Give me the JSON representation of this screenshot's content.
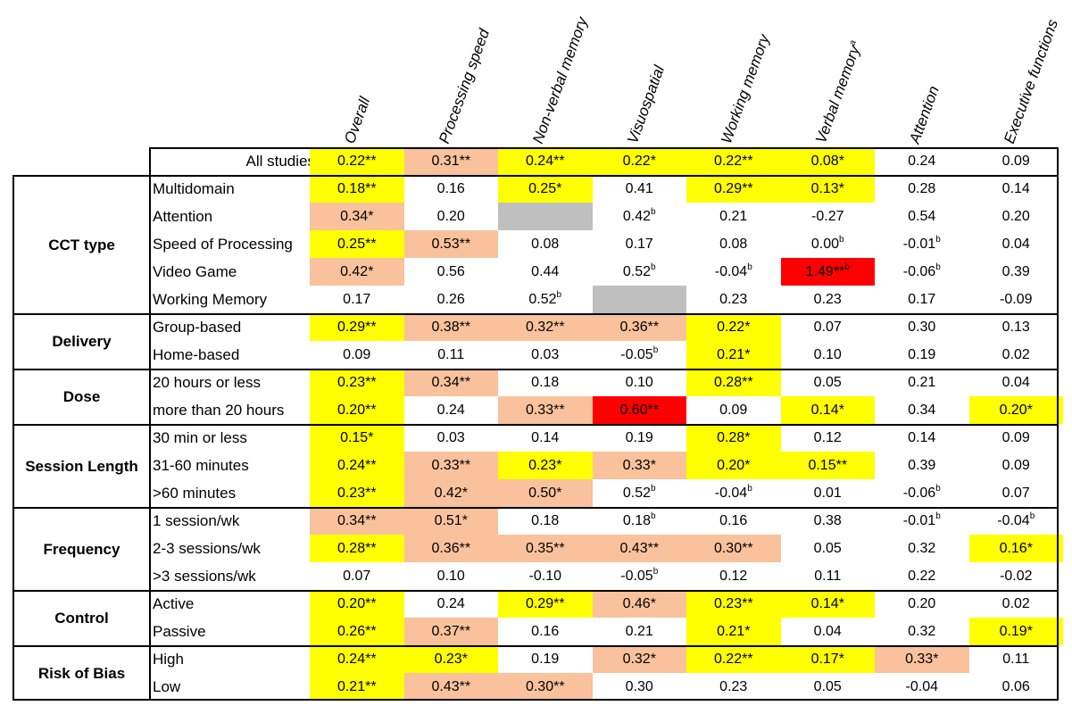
{
  "columns": [
    {
      "label": "Overall",
      "sup": ""
    },
    {
      "label": "Processing speed",
      "sup": ""
    },
    {
      "label": "Non-verbal memory",
      "sup": ""
    },
    {
      "label": "Visuospatial",
      "sup": ""
    },
    {
      "label": "Working memory",
      "sup": ""
    },
    {
      "label": "Verbal memory",
      "sup": "a"
    },
    {
      "label": "Attention",
      "sup": ""
    },
    {
      "label": "Executive functions",
      "sup": ""
    }
  ],
  "colors": {
    "yellow": "#ffff00",
    "orange": "#f9c29c",
    "red": "#ff0000",
    "gray": "#bfbfbf",
    "white": "#ffffff"
  },
  "top_row": {
    "label": "All studies",
    "cells": [
      {
        "v": "0.22**",
        "c": "yellow"
      },
      {
        "v": "0.31**",
        "c": "orange"
      },
      {
        "v": "0.24**",
        "c": "yellow"
      },
      {
        "v": "0.22*",
        "c": "yellow"
      },
      {
        "v": "0.22**",
        "c": "yellow"
      },
      {
        "v": "0.08*",
        "c": "yellow"
      },
      {
        "v": "0.24",
        "c": "white"
      },
      {
        "v": "0.09",
        "c": "white"
      }
    ]
  },
  "groups": [
    {
      "label": "CCT type",
      "rows": [
        {
          "label": "Multidomain",
          "cells": [
            {
              "v": "0.18**",
              "c": "yellow"
            },
            {
              "v": "0.16",
              "c": "white"
            },
            {
              "v": "0.25*",
              "c": "yellow"
            },
            {
              "v": "0.41",
              "c": "white"
            },
            {
              "v": "0.29**",
              "c": "yellow"
            },
            {
              "v": "0.13*",
              "c": "yellow"
            },
            {
              "v": "0.28",
              "c": "white"
            },
            {
              "v": "0.14",
              "c": "white"
            }
          ]
        },
        {
          "label": "Attention",
          "cells": [
            {
              "v": "0.34*",
              "c": "orange"
            },
            {
              "v": "0.20",
              "c": "white"
            },
            {
              "v": "",
              "c": "gray"
            },
            {
              "v": "0.42",
              "sup": "b",
              "c": "white"
            },
            {
              "v": "0.21",
              "c": "white"
            },
            {
              "v": "-0.27",
              "c": "white"
            },
            {
              "v": "0.54",
              "c": "white"
            },
            {
              "v": "0.20",
              "c": "white"
            }
          ]
        },
        {
          "label": "Speed of Processing",
          "cells": [
            {
              "v": "0.25**",
              "c": "yellow"
            },
            {
              "v": "0.53**",
              "c": "orange"
            },
            {
              "v": "0.08",
              "c": "white"
            },
            {
              "v": "0.17",
              "c": "white"
            },
            {
              "v": "0.08",
              "c": "white"
            },
            {
              "v": "0.00",
              "sup": "b",
              "c": "white"
            },
            {
              "v": "-0.01",
              "sup": "b",
              "c": "white"
            },
            {
              "v": "0.04",
              "c": "white"
            }
          ]
        },
        {
          "label": "Video Game",
          "cells": [
            {
              "v": "0.42*",
              "c": "orange"
            },
            {
              "v": "0.56",
              "c": "white"
            },
            {
              "v": "0.44",
              "c": "white"
            },
            {
              "v": "0.52",
              "sup": "b",
              "c": "white"
            },
            {
              "v": "-0.04",
              "sup": "b",
              "c": "white"
            },
            {
              "v": "1.49**",
              "sup": "b",
              "c": "red"
            },
            {
              "v": "-0.06",
              "sup": "b",
              "c": "white"
            },
            {
              "v": "0.39",
              "c": "white"
            }
          ]
        },
        {
          "label": "Working Memory",
          "cells": [
            {
              "v": "0.17",
              "c": "white"
            },
            {
              "v": "0.26",
              "c": "white"
            },
            {
              "v": "0.52",
              "sup": "b",
              "c": "white"
            },
            {
              "v": "",
              "c": "gray"
            },
            {
              "v": "0.23",
              "c": "white"
            },
            {
              "v": "0.23",
              "c": "white"
            },
            {
              "v": "0.17",
              "c": "white"
            },
            {
              "v": "-0.09",
              "c": "white"
            }
          ]
        }
      ]
    },
    {
      "label": "Delivery",
      "rows": [
        {
          "label": "Group-based",
          "cells": [
            {
              "v": "0.29**",
              "c": "yellow"
            },
            {
              "v": "0.38**",
              "c": "orange"
            },
            {
              "v": "0.32**",
              "c": "orange"
            },
            {
              "v": "0.36**",
              "c": "orange"
            },
            {
              "v": "0.22*",
              "c": "yellow"
            },
            {
              "v": "0.07",
              "c": "white"
            },
            {
              "v": "0.30",
              "c": "white"
            },
            {
              "v": "0.13",
              "c": "white"
            }
          ]
        },
        {
          "label": "Home-based",
          "cells": [
            {
              "v": "0.09",
              "c": "white"
            },
            {
              "v": "0.11",
              "c": "white"
            },
            {
              "v": "0.03",
              "c": "white"
            },
            {
              "v": "-0.05",
              "sup": "b",
              "c": "white"
            },
            {
              "v": "0.21*",
              "c": "yellow"
            },
            {
              "v": "0.10",
              "c": "white"
            },
            {
              "v": "0.19",
              "c": "white"
            },
            {
              "v": "0.02",
              "c": "white"
            }
          ]
        }
      ]
    },
    {
      "label": "Dose",
      "rows": [
        {
          "label": "20 hours or less",
          "cells": [
            {
              "v": "0.23**",
              "c": "yellow"
            },
            {
              "v": "0.34**",
              "c": "orange"
            },
            {
              "v": "0.18",
              "c": "white"
            },
            {
              "v": "0.10",
              "c": "white"
            },
            {
              "v": "0.28**",
              "c": "yellow"
            },
            {
              "v": "0.05",
              "c": "white"
            },
            {
              "v": "0.21",
              "c": "white"
            },
            {
              "v": "0.04",
              "c": "white"
            }
          ]
        },
        {
          "label": "more than 20 hours",
          "cells": [
            {
              "v": "0.20**",
              "c": "yellow"
            },
            {
              "v": "0.24",
              "c": "white"
            },
            {
              "v": "0.33**",
              "c": "orange"
            },
            {
              "v": "0.60**",
              "c": "red"
            },
            {
              "v": "0.09",
              "c": "white"
            },
            {
              "v": "0.14*",
              "c": "yellow"
            },
            {
              "v": "0.34",
              "c": "white"
            },
            {
              "v": "0.20*",
              "c": "yellow"
            }
          ]
        }
      ]
    },
    {
      "label": "Session Length",
      "rows": [
        {
          "label": "30 min or less",
          "cells": [
            {
              "v": "0.15*",
              "c": "yellow"
            },
            {
              "v": "0.03",
              "c": "white"
            },
            {
              "v": "0.14",
              "c": "white"
            },
            {
              "v": "0.19",
              "c": "white"
            },
            {
              "v": "0.28*",
              "c": "yellow"
            },
            {
              "v": "0.12",
              "c": "white"
            },
            {
              "v": "0.14",
              "c": "white"
            },
            {
              "v": "0.09",
              "c": "white"
            }
          ]
        },
        {
          "label": "31-60 minutes",
          "cells": [
            {
              "v": "0.24**",
              "c": "yellow"
            },
            {
              "v": "0.33**",
              "c": "orange"
            },
            {
              "v": "0.23*",
              "c": "yellow"
            },
            {
              "v": "0.33*",
              "c": "orange"
            },
            {
              "v": "0.20*",
              "c": "yellow"
            },
            {
              "v": "0.15**",
              "c": "yellow"
            },
            {
              "v": "0.39",
              "c": "white"
            },
            {
              "v": "0.09",
              "c": "white"
            }
          ]
        },
        {
          "label": ">60 minutes",
          "cells": [
            {
              "v": "0.23**",
              "c": "yellow"
            },
            {
              "v": "0.42*",
              "c": "orange"
            },
            {
              "v": "0.50*",
              "c": "orange"
            },
            {
              "v": "0.52",
              "sup": "b",
              "c": "white"
            },
            {
              "v": "-0.04",
              "sup": "b",
              "c": "white"
            },
            {
              "v": "0.01",
              "c": "white"
            },
            {
              "v": "-0.06",
              "sup": "b",
              "c": "white"
            },
            {
              "v": "0.07",
              "c": "white"
            }
          ]
        }
      ]
    },
    {
      "label": "Frequency",
      "rows": [
        {
          "label": "1 session/wk",
          "cells": [
            {
              "v": "0.34**",
              "c": "orange"
            },
            {
              "v": "0.51*",
              "c": "orange"
            },
            {
              "v": "0.18",
              "c": "white"
            },
            {
              "v": "0.18",
              "sup": "b",
              "c": "white"
            },
            {
              "v": "0.16",
              "c": "white"
            },
            {
              "v": "0.38",
              "c": "white"
            },
            {
              "v": "-0.01",
              "sup": "b",
              "c": "white"
            },
            {
              "v": "-0.04",
              "sup": "b",
              "c": "white"
            }
          ]
        },
        {
          "label": "2-3 sessions/wk",
          "cells": [
            {
              "v": "0.28**",
              "c": "yellow"
            },
            {
              "v": "0.36**",
              "c": "orange"
            },
            {
              "v": "0.35**",
              "c": "orange"
            },
            {
              "v": "0.43**",
              "c": "orange"
            },
            {
              "v": "0.30**",
              "c": "orange"
            },
            {
              "v": "0.05",
              "c": "white"
            },
            {
              "v": "0.32",
              "c": "white"
            },
            {
              "v": "0.16*",
              "c": "yellow"
            }
          ]
        },
        {
          "label": ">3 sessions/wk",
          "cells": [
            {
              "v": "0.07",
              "c": "white"
            },
            {
              "v": "0.10",
              "c": "white"
            },
            {
              "v": "-0.10",
              "c": "white"
            },
            {
              "v": "-0.05",
              "sup": "b",
              "c": "white"
            },
            {
              "v": "0.12",
              "c": "white"
            },
            {
              "v": "0.11",
              "c": "white"
            },
            {
              "v": "0.22",
              "c": "white"
            },
            {
              "v": "-0.02",
              "c": "white"
            }
          ]
        }
      ]
    },
    {
      "label": "Control",
      "rows": [
        {
          "label": "Active",
          "cells": [
            {
              "v": "0.20**",
              "c": "yellow"
            },
            {
              "v": "0.24",
              "c": "white"
            },
            {
              "v": "0.29**",
              "c": "yellow"
            },
            {
              "v": "0.46*",
              "c": "orange"
            },
            {
              "v": "0.23**",
              "c": "yellow"
            },
            {
              "v": "0.14*",
              "c": "yellow"
            },
            {
              "v": "0.20",
              "c": "white"
            },
            {
              "v": "0.02",
              "c": "white"
            }
          ]
        },
        {
          "label": "Passive",
          "cells": [
            {
              "v": "0.26**",
              "c": "yellow"
            },
            {
              "v": "0.37**",
              "c": "orange"
            },
            {
              "v": "0.16",
              "c": "white"
            },
            {
              "v": "0.21",
              "c": "white"
            },
            {
              "v": "0.21*",
              "c": "yellow"
            },
            {
              "v": "0.04",
              "c": "white"
            },
            {
              "v": "0.32",
              "c": "white"
            },
            {
              "v": "0.19*",
              "c": "yellow"
            }
          ]
        }
      ]
    },
    {
      "label": "Risk of Bias",
      "rows": [
        {
          "label": "High",
          "cells": [
            {
              "v": "0.24**",
              "c": "yellow"
            },
            {
              "v": "0.23*",
              "c": "yellow"
            },
            {
              "v": "0.19",
              "c": "white"
            },
            {
              "v": "0.32*",
              "c": "orange"
            },
            {
              "v": "0.22**",
              "c": "yellow"
            },
            {
              "v": "0.17*",
              "c": "yellow"
            },
            {
              "v": "0.33*",
              "c": "orange"
            },
            {
              "v": "0.11",
              "c": "white"
            }
          ]
        },
        {
          "label": "Low",
          "cells": [
            {
              "v": "0.21**",
              "c": "yellow"
            },
            {
              "v": "0.43**",
              "c": "orange"
            },
            {
              "v": "0.30**",
              "c": "orange"
            },
            {
              "v": "0.30",
              "c": "white"
            },
            {
              "v": "0.23",
              "c": "white"
            },
            {
              "v": "0.05",
              "c": "white"
            },
            {
              "v": "-0.04",
              "c": "white"
            },
            {
              "v": "0.06",
              "c": "white"
            }
          ]
        }
      ]
    }
  ]
}
